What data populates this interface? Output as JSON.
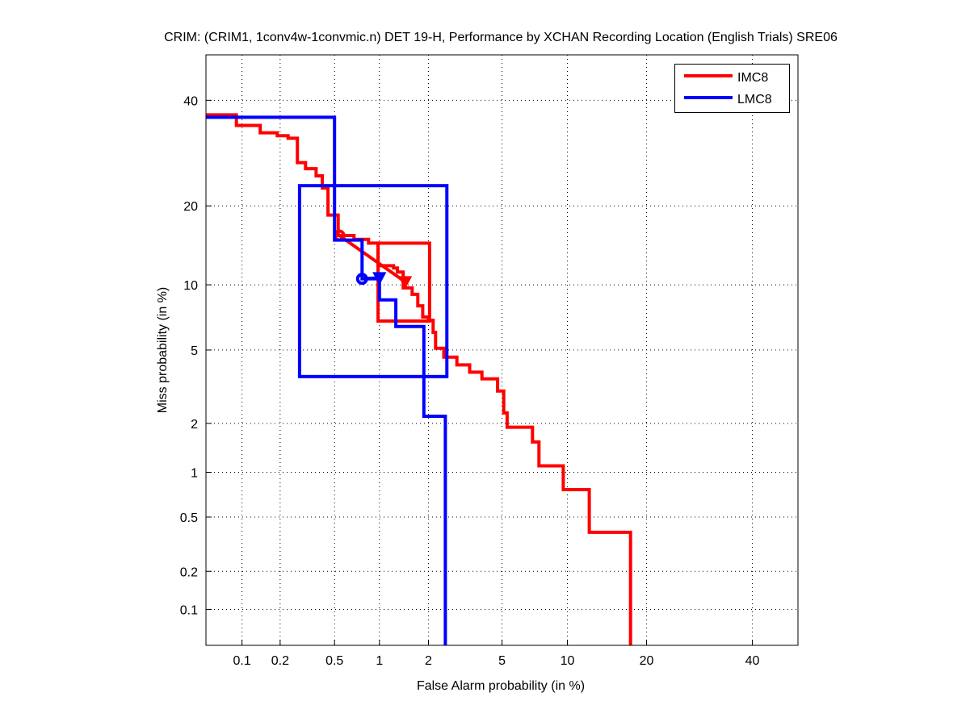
{
  "chart_data": {
    "type": "line",
    "title": "CRIM: (CRIM1, 1conv4w-1convmic.n) DET 19-H,  Performance by XCHAN Recording Location (English Trials) SRE06",
    "xlabel": "False Alarm probability (in %)",
    "ylabel": "Miss probability (in %)",
    "scale": "normal-deviate (probit)",
    "xlim": [
      0.05,
      50
    ],
    "ylim": [
      0.05,
      50
    ],
    "xticks": [
      "0.1",
      "0.2",
      "0.5",
      "1",
      "2",
      "5",
      "10",
      "20",
      "40"
    ],
    "yticks": [
      "0.1",
      "0.2",
      "0.5",
      "1",
      "2",
      "5",
      "10",
      "20",
      "40"
    ],
    "grid": true,
    "legend_position": "top-right",
    "series": [
      {
        "name": "IMC8",
        "color": "#ff0000",
        "x": [
          0.05,
          0.09,
          0.09,
          0.14,
          0.14,
          0.19,
          0.19,
          0.23,
          0.23,
          0.27,
          0.27,
          0.31,
          0.31,
          0.37,
          0.37,
          0.41,
          0.41,
          0.45,
          0.45,
          0.53,
          0.53,
          0.68,
          0.68,
          0.85,
          0.85,
          0.98,
          0.98,
          1.23,
          1.23,
          1.3,
          1.3,
          1.41,
          1.41,
          1.6,
          1.6,
          1.73,
          1.73,
          1.85,
          1.85,
          2.0,
          2.0,
          2.13,
          2.13,
          2.2,
          2.2,
          2.45,
          2.45,
          2.9,
          2.9,
          3.4,
          3.4,
          3.95,
          3.95,
          4.75,
          4.75,
          5.1,
          5.1,
          5.3,
          5.3,
          7.0,
          7.0,
          7.5,
          7.5,
          9.6,
          9.6,
          12.3,
          12.3,
          17.6,
          17.6
        ],
        "y": [
          36.9,
          36.9,
          34.7,
          34.7,
          33.2,
          33.2,
          32.6,
          32.6,
          32.1,
          32.1,
          27.4,
          27.4,
          26.3,
          26.3,
          25.0,
          25.0,
          22.9,
          22.9,
          18.6,
          18.6,
          15.7,
          15.7,
          15.2,
          15.2,
          14.7,
          14.7,
          12.0,
          12.0,
          11.75,
          11.75,
          11.3,
          11.3,
          9.7,
          9.7,
          9.1,
          9.1,
          8.1,
          8.1,
          7.2,
          7.2,
          6.95,
          6.95,
          6.1,
          6.1,
          5.1,
          5.1,
          4.6,
          4.6,
          4.2,
          4.2,
          3.85,
          3.85,
          3.55,
          3.55,
          3.05,
          3.05,
          2.3,
          2.3,
          1.9,
          1.9,
          1.55,
          1.55,
          1.1,
          1.1,
          0.77,
          0.77,
          0.39,
          0.39,
          0.05
        ],
        "box": {
          "x": [
            0.98,
            2.03
          ],
          "y": [
            6.9,
            14.7
          ]
        },
        "circle_marker": [
          0.54,
          15.7
        ],
        "triangle_marker": [
          1.45,
          10.3
        ]
      },
      {
        "name": "LMC8",
        "color": "#0000ff",
        "x": [
          0.05,
          0.5,
          0.5,
          0.77,
          0.77,
          1.0,
          1.0,
          1.27,
          1.27,
          1.88,
          1.88,
          2.5,
          2.5
        ],
        "y": [
          36.4,
          36.4,
          15.1,
          15.1,
          10.6,
          10.6,
          8.6,
          8.6,
          6.5,
          6.5,
          2.2,
          2.2,
          0.05
        ],
        "box": {
          "x": [
            0.28,
            2.55
          ],
          "y": [
            3.65,
            23.3
          ]
        },
        "circle_marker": [
          0.77,
          10.6
        ],
        "triangle_marker": [
          1.0,
          10.7
        ]
      }
    ]
  }
}
